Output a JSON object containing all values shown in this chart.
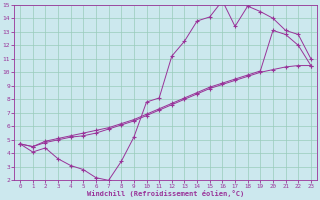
{
  "xlabel": "Windchill (Refroidissement éolien,°C)",
  "bg_color": "#cce8ee",
  "line_color": "#993399",
  "grid_color": "#99ccbb",
  "spine_color": "#993399",
  "xlim": [
    -0.5,
    23.5
  ],
  "ylim": [
    2,
    15
  ],
  "xticks": [
    0,
    1,
    2,
    3,
    4,
    5,
    6,
    7,
    8,
    9,
    10,
    11,
    12,
    13,
    14,
    15,
    16,
    17,
    18,
    19,
    20,
    21,
    22,
    23
  ],
  "yticks": [
    2,
    3,
    4,
    5,
    6,
    7,
    8,
    9,
    10,
    11,
    12,
    13,
    14,
    15
  ],
  "line1_x": [
    0,
    1,
    2,
    3,
    4,
    5,
    6,
    7,
    8,
    9,
    10,
    11,
    12,
    13,
    14,
    15,
    16,
    17,
    18,
    19,
    20,
    21,
    22,
    23
  ],
  "line1_y": [
    4.7,
    4.1,
    4.4,
    3.6,
    3.1,
    2.8,
    2.2,
    2.0,
    3.4,
    5.2,
    7.8,
    8.1,
    11.2,
    12.3,
    13.8,
    14.1,
    15.3,
    13.4,
    14.9,
    14.5,
    14.0,
    13.1,
    12.8,
    11.0
  ],
  "line2_x": [
    0,
    1,
    2,
    3,
    4,
    5,
    6,
    7,
    8,
    9,
    10,
    11,
    12,
    13,
    14,
    15,
    16,
    17,
    18,
    19,
    20,
    21,
    22,
    23
  ],
  "line2_y": [
    4.7,
    4.5,
    4.8,
    5.0,
    5.2,
    5.3,
    5.5,
    5.8,
    6.1,
    6.4,
    6.8,
    7.2,
    7.6,
    8.0,
    8.4,
    8.8,
    9.1,
    9.4,
    9.7,
    10.0,
    10.2,
    10.4,
    10.5,
    10.5
  ],
  "line3_x": [
    0,
    1,
    2,
    3,
    4,
    5,
    6,
    7,
    8,
    9,
    10,
    11,
    12,
    13,
    14,
    15,
    16,
    17,
    18,
    19,
    20,
    21,
    22,
    23
  ],
  "line3_y": [
    4.7,
    4.5,
    4.9,
    5.1,
    5.3,
    5.5,
    5.7,
    5.9,
    6.2,
    6.5,
    6.9,
    7.3,
    7.7,
    8.1,
    8.5,
    8.9,
    9.2,
    9.5,
    9.8,
    10.1,
    13.1,
    12.8,
    12.0,
    10.5
  ]
}
